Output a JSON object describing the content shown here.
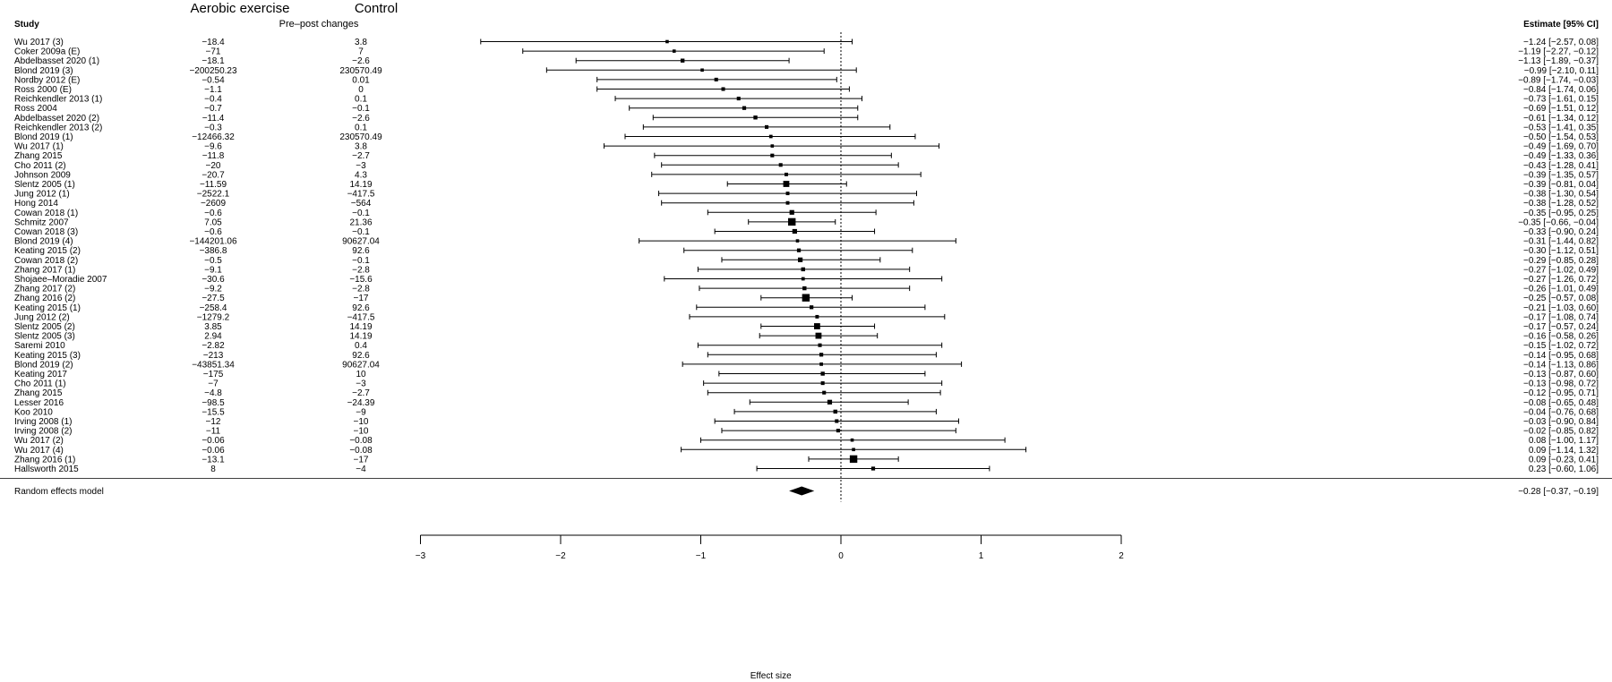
{
  "header": {
    "group_exercise": "Aerobic exercise",
    "group_control": "Control",
    "subheader": "Pre–post changes",
    "study_col": "Study",
    "estimate_col": "Estimate [95% CI]"
  },
  "chart_data": {
    "type": "forest",
    "xlabel": "Effect size",
    "xlim": [
      -3,
      2
    ],
    "xticks": [
      "−3",
      "−2",
      "−1",
      "0",
      "1",
      "2"
    ],
    "xtick_values": [
      -3,
      -2,
      -1,
      0,
      1,
      2
    ],
    "reference_line": 0,
    "studies": [
      {
        "name": "Wu 2017 (3)",
        "exercise": "−18.4",
        "control": "3.8",
        "est": -1.24,
        "lo": -2.57,
        "hi": 0.08,
        "label": "−1.24 [−2.57, 0.08]",
        "weight": 1
      },
      {
        "name": "Coker 2009a (E)",
        "exercise": "−71",
        "control": "7",
        "est": -1.19,
        "lo": -2.27,
        "hi": -0.12,
        "label": "−1.19 [−2.27, −0.12]",
        "weight": 1
      },
      {
        "name": "Abdelbasset 2020 (1)",
        "exercise": "−18.1",
        "control": "−2.6",
        "est": -1.13,
        "lo": -1.89,
        "hi": -0.37,
        "label": "−1.13 [−1.89, −0.37]",
        "weight": 1.5
      },
      {
        "name": "Blond 2019 (3)",
        "exercise": "−200250.23",
        "control": "230570.49",
        "est": -0.99,
        "lo": -2.1,
        "hi": 0.11,
        "label": "−0.99 [−2.10, 0.11]",
        "weight": 1
      },
      {
        "name": "Nordby 2012 (E)",
        "exercise": "−0.54",
        "control": "0.01",
        "est": -0.89,
        "lo": -1.74,
        "hi": -0.03,
        "label": "−0.89 [−1.74, −0.03]",
        "weight": 1.3
      },
      {
        "name": "Ross 2000 (E)",
        "exercise": "−1.1",
        "control": "0",
        "est": -0.84,
        "lo": -1.74,
        "hi": 0.06,
        "label": "−0.84 [−1.74, 0.06]",
        "weight": 1.3
      },
      {
        "name": "Reichkendler 2013 (1)",
        "exercise": "−0.4",
        "control": "0.1",
        "est": -0.73,
        "lo": -1.61,
        "hi": 0.15,
        "label": "−0.73 [−1.61, 0.15]",
        "weight": 1.3
      },
      {
        "name": "Ross 2004",
        "exercise": "−0.7",
        "control": "−0.1",
        "est": -0.69,
        "lo": -1.51,
        "hi": 0.12,
        "label": "−0.69 [−1.51, 0.12]",
        "weight": 1.4
      },
      {
        "name": "Abdelbasset 2020 (2)",
        "exercise": "−11.4",
        "control": "−2.6",
        "est": -0.61,
        "lo": -1.34,
        "hi": 0.12,
        "label": "−0.61 [−1.34, 0.12]",
        "weight": 1.5
      },
      {
        "name": "Reichkendler 2013 (2)",
        "exercise": "−0.3",
        "control": "0.1",
        "est": -0.53,
        "lo": -1.41,
        "hi": 0.35,
        "label": "−0.53 [−1.41, 0.35]",
        "weight": 1.3
      },
      {
        "name": "Blond 2019 (1)",
        "exercise": "−12466.32",
        "control": "230570.49",
        "est": -0.5,
        "lo": -1.54,
        "hi": 0.53,
        "label": "−0.50 [−1.54, 0.53]",
        "weight": 1.1
      },
      {
        "name": "Wu 2017 (1)",
        "exercise": "−9.6",
        "control": "3.8",
        "est": -0.49,
        "lo": -1.69,
        "hi": 0.7,
        "label": "−0.49 [−1.69, 0.70]",
        "weight": 1
      },
      {
        "name": "Zhang 2015",
        "exercise": "−11.8",
        "control": "−2.7",
        "est": -0.49,
        "lo": -1.33,
        "hi": 0.36,
        "label": "−0.49 [−1.33, 0.36]",
        "weight": 1.3
      },
      {
        "name": "Cho 2011 (2)",
        "exercise": "−20",
        "control": "−3",
        "est": -0.43,
        "lo": -1.28,
        "hi": 0.41,
        "label": "−0.43 [−1.28, 0.41]",
        "weight": 1.3
      },
      {
        "name": "Johnson 2009",
        "exercise": "−20.7",
        "control": "4.3",
        "est": -0.39,
        "lo": -1.35,
        "hi": 0.57,
        "label": "−0.39 [−1.35, 0.57]",
        "weight": 1.2
      },
      {
        "name": "Slentz 2005 (1)",
        "exercise": "−11.59",
        "control": "14.19",
        "est": -0.39,
        "lo": -0.81,
        "hi": 0.04,
        "label": "−0.39 [−0.81, 0.04]",
        "weight": 3
      },
      {
        "name": "Jung 2012 (1)",
        "exercise": "−2522.1",
        "control": "−417.5",
        "est": -0.38,
        "lo": -1.3,
        "hi": 0.54,
        "label": "−0.38 [−1.30, 0.54]",
        "weight": 1.2
      },
      {
        "name": "Hong 2014",
        "exercise": "−2609",
        "control": "−564",
        "est": -0.38,
        "lo": -1.28,
        "hi": 0.52,
        "label": "−0.38 [−1.28, 0.52]",
        "weight": 1.2
      },
      {
        "name": "Cowan 2018 (1)",
        "exercise": "−0.6",
        "control": "−0.1",
        "est": -0.35,
        "lo": -0.95,
        "hi": 0.25,
        "label": "−0.35 [−0.95, 0.25]",
        "weight": 2
      },
      {
        "name": "Schmitz 2007",
        "exercise": "7.05",
        "control": "21.36",
        "est": -0.35,
        "lo": -0.66,
        "hi": -0.04,
        "label": "−0.35 [−0.66, −0.04]",
        "weight": 4
      },
      {
        "name": "Cowan 2018 (3)",
        "exercise": "−0.6",
        "control": "−0.1",
        "est": -0.33,
        "lo": -0.9,
        "hi": 0.24,
        "label": "−0.33 [−0.90, 0.24]",
        "weight": 2
      },
      {
        "name": "Blond 2019 (4)",
        "exercise": "−144201.06",
        "control": "90627.04",
        "est": -0.31,
        "lo": -1.44,
        "hi": 0.82,
        "label": "−0.31 [−1.44, 0.82]",
        "weight": 1
      },
      {
        "name": "Keating 2015 (2)",
        "exercise": "−386.8",
        "control": "92.6",
        "est": -0.3,
        "lo": -1.12,
        "hi": 0.51,
        "label": "−0.30 [−1.12, 0.51]",
        "weight": 1.4
      },
      {
        "name": "Cowan 2018 (2)",
        "exercise": "−0.5",
        "control": "−0.1",
        "est": -0.29,
        "lo": -0.85,
        "hi": 0.28,
        "label": "−0.29 [−0.85, 0.28]",
        "weight": 2
      },
      {
        "name": "Zhang 2017 (1)",
        "exercise": "−9.1",
        "control": "−2.8",
        "est": -0.27,
        "lo": -1.02,
        "hi": 0.49,
        "label": "−0.27 [−1.02, 0.49]",
        "weight": 1.5
      },
      {
        "name": "Shojaee–Moradie 2007",
        "exercise": "−30.6",
        "control": "−15.6",
        "est": -0.27,
        "lo": -1.26,
        "hi": 0.72,
        "label": "−0.27 [−1.26, 0.72]",
        "weight": 1.1
      },
      {
        "name": "Zhang 2017 (2)",
        "exercise": "−9.2",
        "control": "−2.8",
        "est": -0.26,
        "lo": -1.01,
        "hi": 0.49,
        "label": "−0.26 [−1.01, 0.49]",
        "weight": 1.5
      },
      {
        "name": "Zhang 2016 (2)",
        "exercise": "−27.5",
        "control": "−17",
        "est": -0.25,
        "lo": -0.57,
        "hi": 0.08,
        "label": "−0.25 [−0.57, 0.08]",
        "weight": 4
      },
      {
        "name": "Keating 2015 (1)",
        "exercise": "−258.4",
        "control": "92.6",
        "est": -0.21,
        "lo": -1.03,
        "hi": 0.6,
        "label": "−0.21 [−1.03, 0.60]",
        "weight": 1.4
      },
      {
        "name": "Jung 2012 (2)",
        "exercise": "−1279.2",
        "control": "−417.5",
        "est": -0.17,
        "lo": -1.08,
        "hi": 0.74,
        "label": "−0.17 [−1.08, 0.74]",
        "weight": 1.2
      },
      {
        "name": "Slentz 2005 (2)",
        "exercise": "3.85",
        "control": "14.19",
        "est": -0.17,
        "lo": -0.57,
        "hi": 0.24,
        "label": "−0.17 [−0.57, 0.24]",
        "weight": 3
      },
      {
        "name": "Slentz 2005 (3)",
        "exercise": "2.94",
        "control": "14.19",
        "est": -0.16,
        "lo": -0.58,
        "hi": 0.26,
        "label": "−0.16 [−0.58, 0.26]",
        "weight": 3
      },
      {
        "name": "Saremi 2010",
        "exercise": "−2.82",
        "control": "0.4",
        "est": -0.15,
        "lo": -1.02,
        "hi": 0.72,
        "label": "−0.15 [−1.02, 0.72]",
        "weight": 1.3
      },
      {
        "name": "Keating 2015 (3)",
        "exercise": "−213",
        "control": "92.6",
        "est": -0.14,
        "lo": -0.95,
        "hi": 0.68,
        "label": "−0.14 [−0.95, 0.68]",
        "weight": 1.4
      },
      {
        "name": "Blond 2019 (2)",
        "exercise": "−43851.34",
        "control": "90627.04",
        "est": -0.14,
        "lo": -1.13,
        "hi": 0.86,
        "label": "−0.14 [−1.13, 0.86]",
        "weight": 1.1
      },
      {
        "name": "Keating 2017",
        "exercise": "−175",
        "control": "10",
        "est": -0.13,
        "lo": -0.87,
        "hi": 0.6,
        "label": "−0.13 [−0.87, 0.60]",
        "weight": 1.5
      },
      {
        "name": "Cho 2011 (1)",
        "exercise": "−7",
        "control": "−3",
        "est": -0.13,
        "lo": -0.98,
        "hi": 0.72,
        "label": "−0.13 [−0.98, 0.72]",
        "weight": 1.3
      },
      {
        "name": "Zhang 2015",
        "exercise": "−4.8",
        "control": "−2.7",
        "est": -0.12,
        "lo": -0.95,
        "hi": 0.71,
        "label": "−0.12 [−0.95, 0.71]",
        "weight": 1.3
      },
      {
        "name": "Lesser 2016",
        "exercise": "−98.5",
        "control": "−24.39",
        "est": -0.08,
        "lo": -0.65,
        "hi": 0.48,
        "label": "−0.08 [−0.65, 0.48]",
        "weight": 2
      },
      {
        "name": "Koo 2010",
        "exercise": "−15.5",
        "control": "−9",
        "est": -0.04,
        "lo": -0.76,
        "hi": 0.68,
        "label": "−0.04 [−0.76, 0.68]",
        "weight": 1.5
      },
      {
        "name": "Irving 2008 (1)",
        "exercise": "−12",
        "control": "−10",
        "est": -0.03,
        "lo": -0.9,
        "hi": 0.84,
        "label": "−0.03 [−0.90, 0.84]",
        "weight": 1.3
      },
      {
        "name": "Irving 2008 (2)",
        "exercise": "−11",
        "control": "−10",
        "est": -0.02,
        "lo": -0.85,
        "hi": 0.82,
        "label": "−0.02 [−0.85, 0.82]",
        "weight": 1.3
      },
      {
        "name": "Wu 2017 (2)",
        "exercise": "−0.06",
        "control": "−0.08",
        "est": 0.08,
        "lo": -1.0,
        "hi": 1.17,
        "label": "0.08 [−1.00, 1.17]",
        "weight": 1
      },
      {
        "name": "Wu 2017 (4)",
        "exercise": "−0.06",
        "control": "−0.08",
        "est": 0.09,
        "lo": -1.14,
        "hi": 1.32,
        "label": "0.09 [−1.14, 1.32]",
        "weight": 1
      },
      {
        "name": "Zhang 2016 (1)",
        "exercise": "−13.1",
        "control": "−17",
        "est": 0.09,
        "lo": -0.23,
        "hi": 0.41,
        "label": "0.09 [−0.23, 0.41]",
        "weight": 4
      },
      {
        "name": "Hallsworth 2015",
        "exercise": "8",
        "control": "−4",
        "est": 0.23,
        "lo": -0.6,
        "hi": 1.06,
        "label": "0.23 [−0.60, 1.06]",
        "weight": 1.4
      }
    ],
    "summary": {
      "name": "Random effects model",
      "est": -0.28,
      "lo": -0.37,
      "hi": -0.19,
      "label": "−0.28 [−0.37, −0.19]"
    }
  }
}
